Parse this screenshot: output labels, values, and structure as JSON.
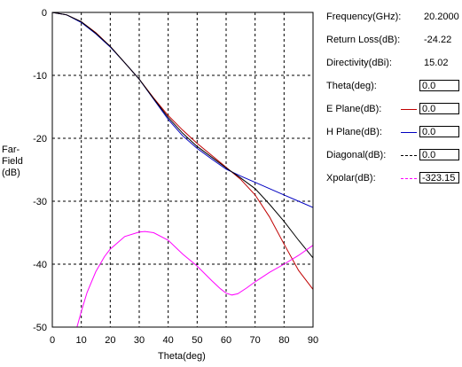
{
  "info": {
    "frequency_label": "Frequency(GHz):",
    "frequency_value": "20.2000",
    "return_loss_label": "Return Loss(dB):",
    "return_loss_value": "-24.22",
    "directivity_label": "Directivity(dBi):",
    "directivity_value": "15.02",
    "theta_label": "Theta(deg):",
    "theta_value": "0.0"
  },
  "legend": [
    {
      "label": "E Plane(dB):",
      "value": "0.0",
      "color": "#c00000",
      "style": "solid"
    },
    {
      "label": "H Plane(dB):",
      "value": "0.0",
      "color": "#0000c0",
      "style": "solid"
    },
    {
      "label": "Diagonal(dB):",
      "value": "0.0",
      "color": "#000000",
      "style": "dashed"
    },
    {
      "label": "Xpolar(dB):",
      "value": "-323.15",
      "color": "#ff00ff",
      "style": "dashed"
    }
  ],
  "chart_data": {
    "type": "line",
    "xlabel": "Theta(deg)",
    "ylabel": "Far-\nField\n(dB)",
    "xlim": [
      0,
      90
    ],
    "ylim": [
      -50,
      0
    ],
    "xticks": [
      0,
      10,
      20,
      30,
      40,
      50,
      60,
      70,
      80,
      90
    ],
    "yticks": [
      0,
      -10,
      -20,
      -30,
      -40,
      -50
    ],
    "grid": true,
    "series": [
      {
        "name": "E Plane",
        "color": "#c00000",
        "x": [
          0,
          5,
          10,
          15,
          20,
          25,
          30,
          35,
          40,
          45,
          50,
          55,
          60,
          65,
          70,
          75,
          80,
          85,
          90
        ],
        "y": [
          0,
          -0.4,
          -1.5,
          -3.2,
          -5.4,
          -8.0,
          -10.6,
          -13.6,
          -16.4,
          -18.7,
          -20.8,
          -22.7,
          -24.6,
          -26.5,
          -29.0,
          -32.5,
          -36.8,
          -41.0,
          -44.0
        ]
      },
      {
        "name": "H Plane",
        "color": "#0000c0",
        "x": [
          0,
          5,
          10,
          15,
          20,
          25,
          30,
          35,
          40,
          45,
          50,
          55,
          60,
          65,
          70,
          75,
          80,
          85,
          90
        ],
        "y": [
          0,
          -0.4,
          -1.6,
          -3.4,
          -5.5,
          -8.0,
          -10.6,
          -13.8,
          -17.0,
          -19.6,
          -21.6,
          -23.3,
          -24.9,
          -26.0,
          -27.0,
          -28.0,
          -29.0,
          -30.0,
          -31.0
        ]
      },
      {
        "name": "Diagonal",
        "color": "#000000",
        "x": [
          0,
          5,
          10,
          15,
          20,
          25,
          30,
          35,
          40,
          45,
          50,
          55,
          60,
          65,
          70,
          75,
          80,
          85,
          90
        ],
        "y": [
          0,
          -0.4,
          -1.5,
          -3.3,
          -5.4,
          -8.0,
          -10.6,
          -13.7,
          -16.7,
          -19.2,
          -21.3,
          -23.0,
          -24.7,
          -26.3,
          -28.0,
          -30.5,
          -33.2,
          -36.2,
          -39.0
        ]
      },
      {
        "name": "Xpolar",
        "color": "#ff00ff",
        "x": [
          8.5,
          10,
          12,
          15,
          18,
          20,
          25,
          30,
          32,
          35,
          40,
          45,
          50,
          55,
          58,
          60,
          62,
          64,
          67,
          70,
          75,
          80,
          85,
          90
        ],
        "y": [
          -50,
          -47.5,
          -44.5,
          -41.2,
          -38.8,
          -37.6,
          -35.6,
          -34.9,
          -34.8,
          -35.0,
          -36.2,
          -38.4,
          -40.3,
          -42.6,
          -43.9,
          -44.6,
          -44.9,
          -44.7,
          -43.8,
          -42.8,
          -41.3,
          -40.0,
          -38.6,
          -37.0
        ]
      }
    ]
  }
}
